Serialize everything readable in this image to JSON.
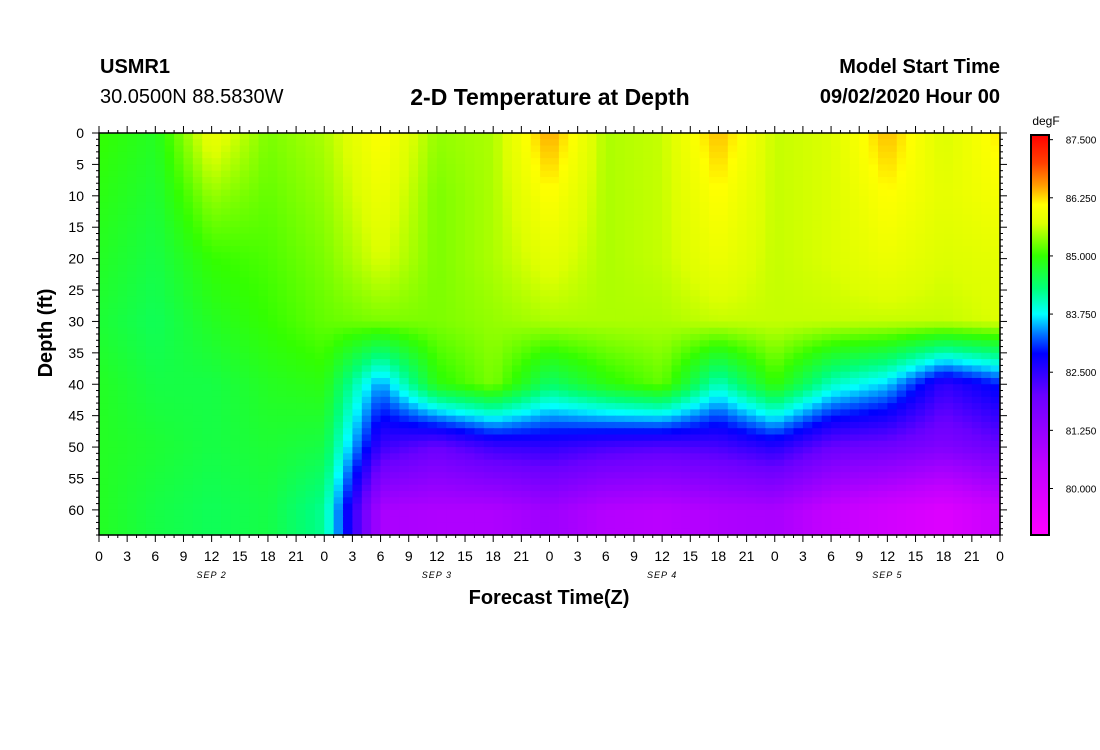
{
  "header": {
    "station": "USMR1",
    "coords": "30.0500N 88.5830W",
    "title": "2-D Temperature at Depth",
    "start_label": "Model Start Time",
    "start_time": "09/02/2020 Hour 00"
  },
  "chart_data": {
    "type": "heatmap",
    "title": "2-D Temperature at Depth",
    "xlabel": "Forecast Time(Z)",
    "ylabel": "Depth (ft)",
    "x_tick_labels": [
      "0",
      "3",
      "6",
      "9",
      "12",
      "15",
      "18",
      "21",
      "0",
      "3",
      "6",
      "9",
      "12",
      "15",
      "18",
      "21",
      "0",
      "3",
      "6",
      "9",
      "12",
      "15",
      "18",
      "21",
      "0",
      "3",
      "6",
      "9",
      "12",
      "15",
      "18",
      "21",
      "0"
    ],
    "date_labels": [
      {
        "label": "SEP 2",
        "hour": 12
      },
      {
        "label": "SEP 3",
        "hour": 36
      },
      {
        "label": "SEP 4",
        "hour": 60
      },
      {
        "label": "SEP 5",
        "hour": 84
      }
    ],
    "xlim": [
      0,
      96
    ],
    "y_tick_labels": [
      "0",
      "5",
      "10",
      "15",
      "20",
      "25",
      "30",
      "35",
      "40",
      "45",
      "50",
      "55",
      "60"
    ],
    "y_ticks": [
      0,
      5,
      10,
      15,
      20,
      25,
      30,
      35,
      40,
      45,
      50,
      55,
      60
    ],
    "ylim": [
      0,
      64
    ],
    "colorbar": {
      "unit": "degF",
      "min": 79.0,
      "max": 87.6,
      "tick_labels": [
        "87.500",
        "86.250",
        "85.000",
        "83.750",
        "82.500",
        "81.250",
        "80.000"
      ],
      "tick_values": [
        87.5,
        86.25,
        85.0,
        83.75,
        82.5,
        81.25,
        80.0
      ],
      "stops": [
        {
          "value": 79.0,
          "color": "#ff00ff"
        },
        {
          "value": 80.5,
          "color": "#c000ff"
        },
        {
          "value": 82.0,
          "color": "#6a00ff"
        },
        {
          "value": 82.9,
          "color": "#0000ff"
        },
        {
          "value": 83.3,
          "color": "#0070ff"
        },
        {
          "value": 83.75,
          "color": "#00ffff"
        },
        {
          "value": 84.3,
          "color": "#00ff7a"
        },
        {
          "value": 85.0,
          "color": "#33ff00"
        },
        {
          "value": 85.7,
          "color": "#ddff00"
        },
        {
          "value": 86.1,
          "color": "#ffff00"
        },
        {
          "value": 86.5,
          "color": "#ffa000"
        },
        {
          "value": 87.0,
          "color": "#ff4000"
        },
        {
          "value": 87.6,
          "color": "#ff0000"
        }
      ]
    },
    "grid_hours": [
      0,
      6,
      12,
      18,
      24,
      30,
      36,
      42,
      48,
      54,
      60,
      66,
      72,
      78,
      84,
      90,
      96
    ],
    "grid_depths": [
      0,
      10,
      20,
      30,
      40,
      50,
      60
    ],
    "values": [
      [
        85.0,
        84.8,
        85.9,
        85.3,
        85.5,
        86.1,
        85.4,
        85.5,
        86.5,
        85.5,
        85.6,
        86.4,
        85.6,
        85.7,
        86.4,
        85.7,
        86.2
      ],
      [
        84.9,
        84.7,
        85.4,
        85.2,
        85.4,
        85.9,
        85.3,
        85.5,
        86.1,
        85.5,
        85.6,
        86.1,
        85.6,
        85.7,
        86.1,
        85.8,
        86.0
      ],
      [
        84.8,
        84.6,
        85.0,
        85.1,
        85.3,
        85.7,
        85.3,
        85.5,
        85.8,
        85.5,
        85.6,
        85.9,
        85.6,
        85.7,
        85.9,
        85.7,
        85.8
      ],
      [
        84.7,
        84.5,
        84.8,
        85.0,
        85.2,
        85.3,
        85.3,
        85.4,
        85.5,
        85.5,
        85.5,
        85.6,
        85.6,
        85.6,
        85.6,
        85.6,
        85.7
      ],
      [
        84.8,
        84.6,
        84.6,
        84.8,
        84.9,
        83.4,
        84.9,
        85.3,
        84.4,
        84.9,
        85.2,
        84.0,
        85.0,
        84.0,
        83.6,
        82.5,
        83.0
      ],
      [
        84.8,
        84.7,
        84.6,
        84.7,
        84.6,
        82.4,
        82.0,
        82.4,
        82.5,
        82.3,
        82.2,
        82.3,
        82.6,
        82.0,
        81.9,
        81.6,
        82.0
      ],
      [
        84.8,
        84.6,
        84.5,
        84.6,
        84.2,
        80.9,
        80.8,
        80.8,
        81.1,
        80.7,
        80.6,
        80.8,
        80.9,
        80.4,
        80.1,
        79.8,
        80.3
      ]
    ]
  }
}
